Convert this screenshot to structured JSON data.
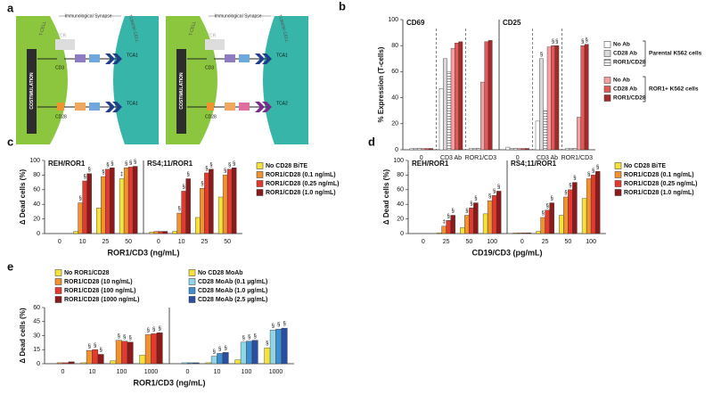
{
  "diagram": [
    {
      "title": "Immunological Synapse",
      "t_cell": "T-CELL",
      "tumor_cell": "TUMOR CELL",
      "costimulation": "COSTIMULATION",
      "tcr": "TCR",
      "cd3": "CD3",
      "cd28": "CD28",
      "target_top": "TCA1",
      "target_bottom": "TCA1"
    },
    {
      "title": "Immunological Synapse",
      "t_cell": "T-CELL",
      "tumor_cell": "TUMOR CELL",
      "costimulation": "COSTIMULATION",
      "tcr": "TCR",
      "cd3": "CD3",
      "cd28": "CD28",
      "target_top": "TCA1",
      "target_bottom": "TCA2"
    }
  ],
  "diagram_label": "a",
  "chart_data": [
    {
      "type": "bar",
      "label": "b",
      "ylabel": "% Expression (T-cells)",
      "ylim": [
        0,
        100
      ],
      "yticks": [
        0,
        20,
        40,
        60,
        80,
        100
      ],
      "category_dividers": true,
      "facets": [
        {
          "title": "CD69",
          "categories": [
            "0",
            "CD3 Ab",
            "ROR1/CD3"
          ],
          "series": [
            {
              "color": "#ffffff",
              "values": [
                1,
                47,
                1
              ]
            },
            {
              "color": "#d9d9d9",
              "values": [
                1,
                70,
                1
              ]
            },
            {
              "hatch": true,
              "values": [
                1,
                60,
                1
              ]
            },
            {
              "color": "#f2a0a0",
              "values": [
                1,
                78,
                52
              ]
            },
            {
              "color": "#e05a5a",
              "values": [
                1,
                82,
                83
              ]
            },
            {
              "color": "#a62a2a",
              "values": [
                1,
                83,
                84
              ]
            }
          ]
        },
        {
          "title": "CD25",
          "categories": [
            "0",
            "CD3 Ab",
            "ROR1/CD3"
          ],
          "series": [
            {
              "color": "#ffffff",
              "values": [
                2,
                22,
                1
              ]
            },
            {
              "color": "#d9d9d9",
              "values": [
                1,
                70,
                1
              ],
              "significance": [
                null,
                "§",
                null
              ]
            },
            {
              "hatch": true,
              "values": [
                1,
                30,
                1
              ]
            },
            {
              "color": "#f2a0a0",
              "values": [
                1,
                79,
                25
              ]
            },
            {
              "color": "#e05a5a",
              "values": [
                1,
                80,
                80
              ],
              "significance": [
                null,
                "§",
                "§"
              ]
            },
            {
              "color": "#a62a2a",
              "values": [
                1,
                80,
                81
              ],
              "significance": [
                null,
                "§",
                "§"
              ]
            }
          ]
        }
      ],
      "legend": [
        {
          "title": "Parental K562 cells",
          "entries": [
            {
              "name": "No Ab",
              "color": "#ffffff"
            },
            {
              "name": "CD28 Ab",
              "color": "#d9d9d9"
            },
            {
              "name": "ROR1/CD28",
              "hatch": true
            }
          ]
        },
        {
          "title": "ROR1+ K562 cells",
          "entries": [
            {
              "name": "No Ab",
              "color": "#f2a0a0"
            },
            {
              "name": "CD28 Ab",
              "color": "#e05a5a"
            },
            {
              "name": "ROR1/CD28",
              "color": "#a62a2a"
            }
          ]
        }
      ]
    },
    {
      "type": "bar",
      "label": "c",
      "ylabel": "Δ Dead cells (%)",
      "xlabel": "ROR1/CD3 (ng/mL)",
      "ylim": [
        0,
        100
      ],
      "yticks": [
        0,
        20,
        40,
        60,
        80,
        100
      ],
      "facets": [
        {
          "title": "REH/ROR1",
          "categories": [
            "0",
            "10",
            "25",
            "50"
          ],
          "series": [
            {
              "color": "#f5e33c",
              "values": [
                0,
                3,
                35,
                75
              ],
              "significance": [
                null,
                null,
                null,
                "‡"
              ]
            },
            {
              "color": "#f0922e",
              "values": [
                0,
                42,
                78,
                90
              ],
              "significance": [
                null,
                "§",
                "§",
                "§"
              ]
            },
            {
              "color": "#e23a2e",
              "values": [
                0,
                72,
                88,
                91
              ],
              "significance": [
                null,
                "§",
                "§",
                "§"
              ]
            },
            {
              "color": "#8b1a1a",
              "values": [
                0,
                82,
                90,
                92
              ],
              "significance": [
                null,
                "§",
                "§",
                "§"
              ]
            }
          ]
        },
        {
          "title": "RS4;11/ROR1",
          "categories": [
            "0",
            "10",
            "25",
            "50"
          ],
          "series": [
            {
              "color": "#f5e33c",
              "values": [
                2,
                3,
                22,
                50
              ]
            },
            {
              "color": "#f0922e",
              "values": [
                3,
                28,
                62,
                80
              ],
              "significance": [
                null,
                "§",
                "§",
                "§"
              ]
            },
            {
              "color": "#e23a2e",
              "values": [
                3,
                58,
                83,
                88
              ],
              "significance": [
                null,
                "§",
                "§",
                "§"
              ]
            },
            {
              "color": "#8b1a1a",
              "values": [
                3,
                75,
                88,
                90
              ],
              "significance": [
                null,
                "§",
                "§",
                "§"
              ]
            }
          ]
        }
      ],
      "legend": [
        {
          "entries": [
            {
              "name": "No CD28 BiTE",
              "color": "#f5e33c"
            },
            {
              "name": "ROR1/CD28 (0.1 ng/mL)",
              "color": "#f0922e"
            },
            {
              "name": "ROR1/CD28 (0.25 ng/mL)",
              "color": "#e23a2e"
            },
            {
              "name": "ROR1/CD28 (1.0 ng/mL)",
              "color": "#8b1a1a"
            }
          ]
        }
      ]
    },
    {
      "type": "bar",
      "label": "d",
      "ylabel": "Δ Dead cells (%)",
      "xlabel": "CD19/CD3 (pg/mL)",
      "ylim": [
        0,
        100
      ],
      "yticks": [
        0,
        20,
        40,
        60,
        80,
        100
      ],
      "facets": [
        {
          "title": "REH/ROR1",
          "categories": [
            "0",
            "25",
            "50",
            "100"
          ],
          "series": [
            {
              "color": "#f5e33c",
              "values": [
                0,
                1,
                8,
                27
              ]
            },
            {
              "color": "#f0922e",
              "values": [
                0,
                10,
                25,
                45
              ],
              "significance": [
                null,
                "‡",
                "§",
                "§"
              ]
            },
            {
              "color": "#e23a2e",
              "values": [
                0,
                18,
                35,
                52
              ],
              "significance": [
                null,
                "§",
                "§",
                "§"
              ]
            },
            {
              "color": "#8b1a1a",
              "values": [
                0,
                25,
                42,
                58
              ],
              "significance": [
                null,
                "§",
                "§",
                "§"
              ]
            }
          ]
        },
        {
          "title": "RS4;11/ROR1",
          "categories": [
            "0",
            "25",
            "50",
            "100"
          ],
          "series": [
            {
              "color": "#f5e33c",
              "values": [
                1,
                3,
                25,
                48
              ]
            },
            {
              "color": "#f0922e",
              "values": [
                1,
                22,
                50,
                75
              ],
              "significance": [
                null,
                "§",
                "§",
                "§"
              ]
            },
            {
              "color": "#e23a2e",
              "values": [
                1,
                32,
                60,
                80
              ],
              "significance": [
                null,
                "§",
                "§",
                "§"
              ]
            },
            {
              "color": "#8b1a1a",
              "values": [
                1,
                42,
                70,
                85
              ],
              "significance": [
                null,
                "§",
                "§",
                "§"
              ]
            }
          ]
        }
      ],
      "legend": [
        {
          "entries": [
            {
              "name": "No CD28 BiTE",
              "color": "#f5e33c"
            },
            {
              "name": "ROR1/CD28 (0.1 ng/mL)",
              "color": "#f0922e"
            },
            {
              "name": "ROR1/CD28 (0.25 ng/mL)",
              "color": "#e23a2e"
            },
            {
              "name": "ROR1/CD28 (1.0 ng/mL)",
              "color": "#8b1a1a"
            }
          ]
        }
      ]
    },
    {
      "type": "bar",
      "label": "e",
      "ylabel": "Δ Dead cells (%)",
      "xlabel": "ROR1/CD3 (ng/mL)",
      "ylim": [
        0,
        60
      ],
      "yticks": [
        0,
        15,
        30,
        45,
        60
      ],
      "facets": [
        {
          "categories": [
            "0",
            "10",
            "100",
            "1000"
          ],
          "series": [
            {
              "color": "#f5e33c",
              "values": [
                0,
                1,
                3,
                9
              ]
            },
            {
              "color": "#f0922e",
              "values": [
                1,
                14,
                25,
                31
              ],
              "significance": [
                null,
                "§",
                "§",
                "§"
              ]
            },
            {
              "color": "#e23a2e",
              "values": [
                1,
                15,
                24,
                32
              ],
              "significance": [
                null,
                "§",
                "§",
                "§"
              ]
            },
            {
              "color": "#8b1a1a",
              "values": [
                2,
                10,
                23,
                33
              ],
              "significance": [
                null,
                "§",
                "§",
                "§"
              ]
            }
          ]
        },
        {
          "categories": [
            "0",
            "10",
            "100",
            "1000"
          ],
          "series": [
            {
              "color": "#f5e33c",
              "values": [
                0,
                1,
                4,
                17
              ],
              "significance": [
                null,
                null,
                null,
                "§"
              ]
            },
            {
              "color": "#8fd6e8",
              "values": [
                1,
                8,
                23,
                36
              ],
              "significance": [
                null,
                "§",
                "§",
                "§"
              ]
            },
            {
              "color": "#3f8fd0",
              "values": [
                1,
                11,
                24,
                37
              ],
              "significance": [
                null,
                "§",
                "§",
                "§"
              ]
            },
            {
              "color": "#2a4fa0",
              "values": [
                1,
                12,
                25,
                38
              ],
              "significance": [
                null,
                "§",
                "§",
                "§"
              ]
            }
          ]
        }
      ],
      "legend": [
        {
          "entries": [
            {
              "name": "No ROR1/CD28",
              "color": "#f5e33c"
            },
            {
              "name": "ROR1/CD28 (10 ng/mL)",
              "color": "#f0922e"
            },
            {
              "name": "ROR1/CD28 (100 ng/mL)",
              "color": "#e23a2e"
            },
            {
              "name": "ROR1/CD28 (1000 ng/mL)",
              "color": "#8b1a1a"
            }
          ]
        },
        {
          "entries": [
            {
              "name": "No CD28 MoAb",
              "color": "#f5e33c"
            },
            {
              "name": "CD28 MoAb (0.1 µg/mL)",
              "color": "#8fd6e8"
            },
            {
              "name": "CD28 MoAb (1.0 µg/mL)",
              "color": "#3f8fd0"
            },
            {
              "name": "CD28 MoAb (2.5 µg/mL)",
              "color": "#2a4fa0"
            }
          ]
        }
      ]
    }
  ]
}
